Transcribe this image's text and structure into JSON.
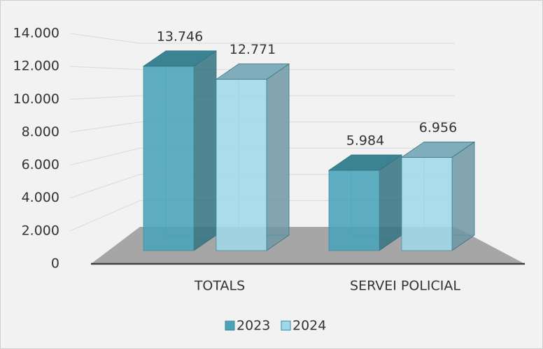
{
  "chart_data": {
    "type": "bar3d",
    "categories": [
      "TOTALS",
      "SERVEI POLICIAL"
    ],
    "series": [
      {
        "name": "2023",
        "color": "#4aa3b8",
        "values": [
          13746,
          5984
        ],
        "value_labels": [
          "13.746",
          "5.984"
        ]
      },
      {
        "name": "2024",
        "color": "#9fd8ea",
        "values": [
          12771,
          6956
        ],
        "value_labels": [
          "12.771",
          "6.956"
        ]
      }
    ],
    "ylim": [
      0,
      14000
    ],
    "yticks": [
      0,
      {
        "value": 2000,
        "label": "2.000"
      },
      {
        "value": 4000,
        "label": "4.000"
      },
      {
        "value": 6000,
        "label": "6.000"
      },
      {
        "value": 8000,
        "label": "8.000"
      },
      {
        "value": 10000,
        "label": "10.000"
      },
      {
        "value": 12000,
        "label": "12.000"
      },
      {
        "value": 14000,
        "label": "14.000"
      }
    ],
    "grid": true,
    "legend": "bottom"
  }
}
